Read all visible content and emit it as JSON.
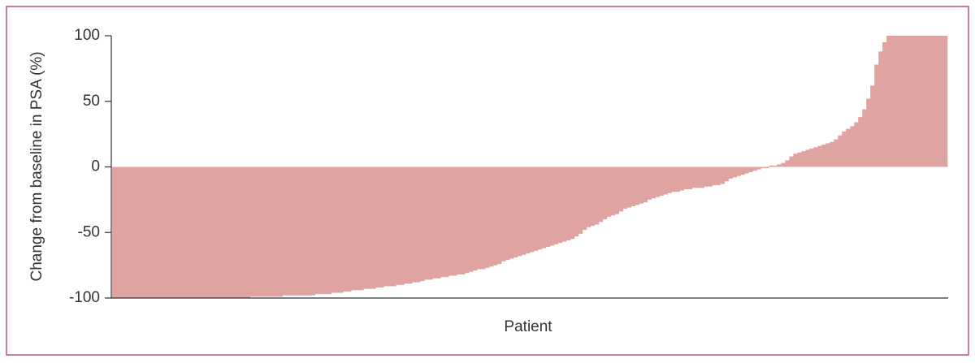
{
  "chart_data": {
    "type": "bar",
    "ylabel": "Change from baseline in PSA (%)",
    "xlabel": "Patient",
    "color": "#dfa4a1",
    "ylim": [
      -100,
      100
    ],
    "yticks": [
      -100,
      -50,
      0,
      50,
      100
    ],
    "values": [
      -100,
      -100,
      -100,
      -100,
      -100,
      -100,
      -100,
      -100,
      -100,
      -100,
      -100,
      -100,
      -100,
      -100,
      -100,
      -100,
      -100,
      -100,
      -100,
      -100,
      -100,
      -100,
      -100,
      -100,
      -100,
      -100,
      -100,
      -100,
      -100,
      -100,
      -100,
      -100,
      -100,
      -100,
      -99,
      -99,
      -99,
      -99,
      -99,
      -99,
      -99,
      -99,
      -98,
      -98,
      -98,
      -98,
      -98,
      -98,
      -98,
      -98,
      -97,
      -97,
      -97,
      -97,
      -96,
      -96,
      -96,
      -95,
      -95,
      -94,
      -94,
      -94,
      -93,
      -93,
      -93,
      -92,
      -92,
      -91,
      -91,
      -91,
      -90,
      -90,
      -89,
      -89,
      -88,
      -88,
      -87,
      -86,
      -86,
      -85,
      -85,
      -84,
      -84,
      -83,
      -83,
      -82,
      -82,
      -81,
      -80,
      -79,
      -78,
      -78,
      -77,
      -76,
      -75,
      -74,
      -72,
      -71,
      -70,
      -69,
      -68,
      -67,
      -66,
      -65,
      -64,
      -63,
      -62,
      -61,
      -60,
      -59,
      -58,
      -57,
      -56,
      -55,
      -53,
      -51,
      -48,
      -46,
      -45,
      -44,
      -42,
      -40,
      -38,
      -37,
      -36,
      -34,
      -32,
      -31,
      -30,
      -29,
      -28,
      -27,
      -25,
      -24,
      -23,
      -22,
      -21,
      -20,
      -19,
      -19,
      -18,
      -17,
      -17,
      -16,
      -16,
      -16,
      -15,
      -15,
      -14,
      -14,
      -13,
      -11,
      -9,
      -8,
      -7,
      -6,
      -5,
      -4,
      -3,
      -2,
      -1,
      -1,
      1,
      1,
      2,
      3,
      5,
      8,
      10,
      11,
      12,
      13,
      14,
      15,
      16,
      17,
      18,
      19,
      21,
      24,
      27,
      29,
      31,
      34,
      38,
      44,
      52,
      62,
      78,
      88,
      95,
      100,
      100,
      100,
      100,
      100,
      100,
      100,
      100,
      100,
      100,
      100,
      100,
      100,
      100,
      100
    ]
  }
}
